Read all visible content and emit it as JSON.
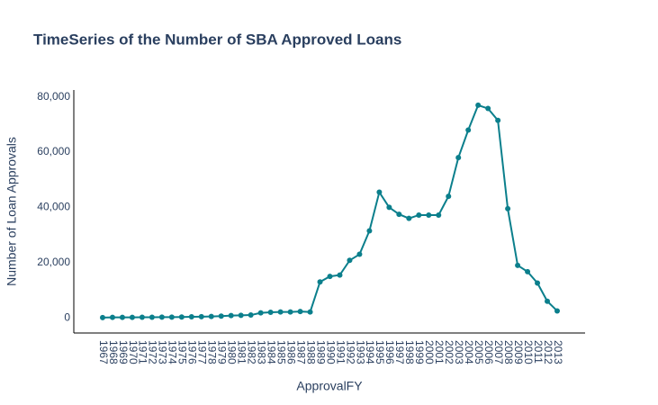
{
  "chart_data": {
    "type": "line",
    "title": "TimeSeries of the Number of SBA Approved Loans",
    "x_label": "ApprovalFY",
    "y_label": "Number of Loan Approvals",
    "categories": [
      "1967",
      "1968",
      "1969",
      "1970",
      "1971",
      "1972",
      "1973",
      "1974",
      "1975",
      "1976",
      "1977",
      "1978",
      "1979",
      "1980",
      "1981",
      "1982",
      "1983",
      "1984",
      "1985",
      "1986",
      "1987",
      "1988",
      "1989",
      "1990",
      "1991",
      "1992",
      "1993",
      "1994",
      "1995",
      "1996",
      "1997",
      "1998",
      "1999",
      "2000",
      "2001",
      "2002",
      "2003",
      "2004",
      "2005",
      "2006",
      "2007",
      "2008",
      "2009",
      "2010",
      "2011",
      "2012",
      "2013"
    ],
    "series": [
      {
        "name": "Number of Loan Approvals",
        "color": "#0b7f8c",
        "values": [
          100,
          150,
          150,
          150,
          200,
          200,
          250,
          250,
          300,
          350,
          400,
          500,
          600,
          800,
          900,
          1000,
          1800,
          2000,
          2100,
          2100,
          2300,
          2100,
          13000,
          15000,
          15500,
          20800,
          23000,
          31500,
          45500,
          40000,
          37500,
          36000,
          37200,
          37200,
          37200,
          44000,
          58000,
          68000,
          77000,
          75800,
          71500,
          39500,
          19000,
          16700,
          12600,
          6000,
          2500
        ]
      }
    ],
    "ylim": [
      -5500,
      82500
    ],
    "yticks": [
      0,
      {
        "value": 20000,
        "label": "20,000"
      },
      {
        "value": 40000,
        "label": "40,000"
      },
      {
        "value": 60000,
        "label": "60,000"
      },
      {
        "value": 80000,
        "label": "80,000"
      }
    ]
  }
}
